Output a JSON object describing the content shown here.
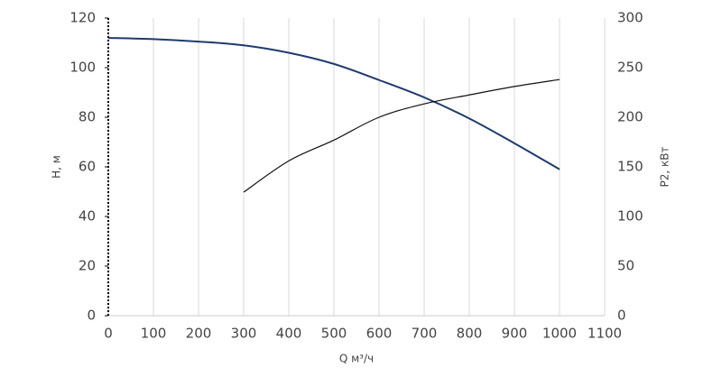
{
  "chart_data": {
    "type": "line",
    "x_label": "Q м³/ч",
    "y_label": "H, м",
    "y2_label": "P2, кВт",
    "series": [
      {
        "name": "H",
        "color": "#1f3a6e",
        "x": [
          0,
          100,
          200,
          300,
          400,
          500,
          600,
          700,
          800,
          900,
          1000
        ],
        "values": [
          112,
          111.5,
          110.5,
          109,
          106,
          101.5,
          95,
          88,
          79.5,
          69.5,
          59
        ]
      },
      {
        "name": "P2",
        "color": "#111111",
        "axis": "y2",
        "x": [
          300,
          400,
          500,
          600,
          700,
          800,
          900,
          1000
        ],
        "values": [
          124.5,
          156,
          177,
          200,
          213.5,
          222.5,
          231,
          238
        ]
      }
    ],
    "xlim": [
      0,
      1100
    ],
    "xticks": [
      0,
      100,
      200,
      300,
      400,
      500,
      600,
      700,
      800,
      900,
      1000,
      1100
    ],
    "ylim": [
      0,
      120
    ],
    "yticks": [
      0,
      20,
      40,
      60,
      80,
      100,
      120
    ],
    "y2lim": [
      0,
      300
    ],
    "y2ticks": [
      0,
      50,
      100,
      150,
      200,
      250,
      300
    ],
    "grid": true
  }
}
